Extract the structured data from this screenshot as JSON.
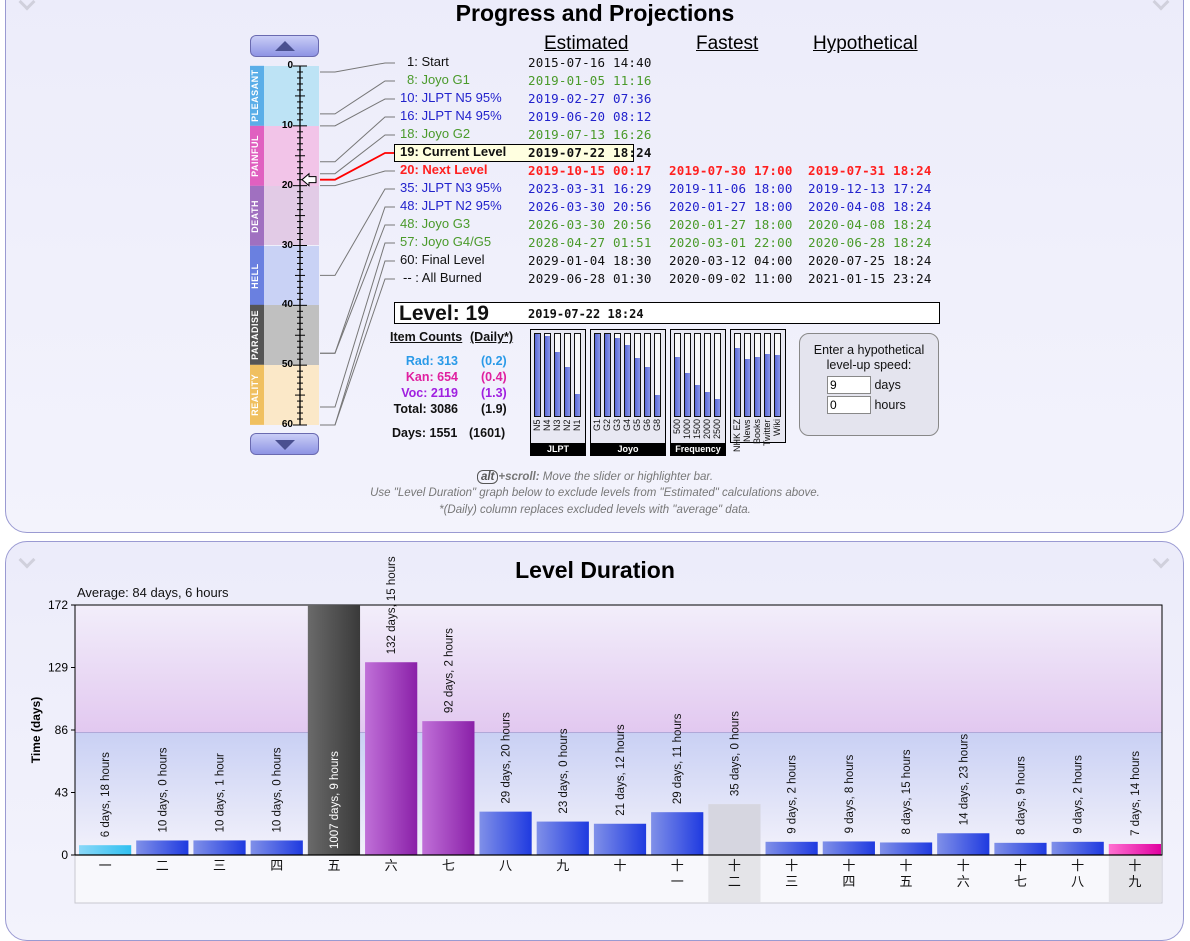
{
  "progress_panel": {
    "title": "Progress and Projections",
    "slider": {
      "scale_ticks": [
        "0",
        "10",
        "20",
        "30",
        "40",
        "50",
        "60"
      ],
      "bands": [
        {
          "label": "PLEASANT",
          "from": 0,
          "to": 10,
          "tag_color": "#5aaee8",
          "bg_color": "#bde3f5"
        },
        {
          "label": "PAINFUL",
          "from": 10,
          "to": 20,
          "tag_color": "#e060c0",
          "bg_color": "#f2c4e8"
        },
        {
          "label": "DEATH",
          "from": 20,
          "to": 30,
          "tag_color": "#a070c0",
          "bg_color": "#e2cbe6"
        },
        {
          "label": "HELL",
          "from": 30,
          "to": 40,
          "tag_color": "#6a80e0",
          "bg_color": "#c9d2f5"
        },
        {
          "label": "PARADISE",
          "from": 40,
          "to": 50,
          "tag_color": "#555555",
          "bg_color": "#c0c0c0"
        },
        {
          "label": "REALITY",
          "from": 50,
          "to": 60,
          "tag_color": "#f0c060",
          "bg_color": "#fbe8c8"
        }
      ],
      "current_level": 19
    },
    "columns": {
      "estimated": "Estimated",
      "fastest": "Fastest",
      "hypothetical": "Hypothetical"
    },
    "milestones": [
      {
        "level": 1,
        "label": "1: Start",
        "color": "black",
        "estimated": "2015-07-16 14:40",
        "fastest": "",
        "hypothetical": ""
      },
      {
        "level": 8,
        "label": "8: Joyo G1",
        "color": "green",
        "estimated": "2019-01-05 11:16",
        "fastest": "",
        "hypothetical": ""
      },
      {
        "level": 10,
        "label": "10: JLPT N5 95%",
        "color": "blue",
        "estimated": "2019-02-27 07:36",
        "fastest": "",
        "hypothetical": ""
      },
      {
        "level": 16,
        "label": "16: JLPT N4 95%",
        "color": "blue",
        "estimated": "2019-06-20 08:12",
        "fastest": "",
        "hypothetical": ""
      },
      {
        "level": 18,
        "label": "18: Joyo G2",
        "color": "green",
        "estimated": "2019-07-13 16:26",
        "fastest": "",
        "hypothetical": ""
      },
      {
        "level": 19,
        "label": "19: Current Level",
        "color": "current",
        "estimated": "2019-07-22 18:24",
        "fastest": "",
        "hypothetical": ""
      },
      {
        "level": 20,
        "label": "20: Next Level",
        "color": "red",
        "estimated": "2019-10-15 00:17",
        "fastest": "2019-07-30 17:00",
        "hypothetical": "2019-07-31 18:24"
      },
      {
        "level": 35,
        "label": "35: JLPT N3 95%",
        "color": "blue",
        "estimated": "2023-03-31 16:29",
        "fastest": "2019-11-06 18:00",
        "hypothetical": "2019-12-13 17:24"
      },
      {
        "level": 48,
        "label": "48: JLPT N2 95%",
        "color": "blue",
        "estimated": "2026-03-30 20:56",
        "fastest": "2020-01-27 18:00",
        "hypothetical": "2020-04-08 18:24"
      },
      {
        "level": 48,
        "label": "48: Joyo G3",
        "color": "green",
        "estimated": "2026-03-30 20:56",
        "fastest": "2020-01-27 18:00",
        "hypothetical": "2020-04-08 18:24"
      },
      {
        "level": 57,
        "label": "57: Joyo G4/G5",
        "color": "green",
        "estimated": "2028-04-27 01:51",
        "fastest": "2020-03-01 22:00",
        "hypothetical": "2020-06-28 18:24"
      },
      {
        "level": 60,
        "label": "60: Final Level",
        "color": "black",
        "estimated": "2029-01-04 18:30",
        "fastest": "2020-03-12 04:00",
        "hypothetical": "2020-07-25 18:24"
      },
      {
        "level": 60,
        "label": "-- : All Burned",
        "color": "black",
        "estimated": "2029-06-28 01:30",
        "fastest": "2020-09-02 11:00",
        "hypothetical": "2021-01-15 23:24"
      }
    ],
    "level_box": {
      "label": "Level: 19",
      "date": "2019-07-22 18:24"
    },
    "item_counts": {
      "header": "Item Counts",
      "daily_header": "(Daily*)",
      "rows": [
        {
          "label": "Rad: 313",
          "daily": "(0.2)",
          "color": "#2a9ae8"
        },
        {
          "label": "Kan: 654",
          "daily": "(0.4)",
          "color": "#e020a0"
        },
        {
          "label": "Voc: 2119",
          "daily": "(1.3)",
          "color": "#a020e0"
        },
        {
          "label": "Total: 3086",
          "daily": "(1.9)",
          "color": "#111111"
        }
      ],
      "days": {
        "label": "Days: 1551",
        "daily": "(1601)"
      }
    },
    "mini_charts": [
      {
        "caption": "JLPT",
        "bars": [
          {
            "label": "N5",
            "fraction": 1.0
          },
          {
            "label": "N4",
            "fraction": 0.98
          },
          {
            "label": "N3",
            "fraction": 0.78
          },
          {
            "label": "N2",
            "fraction": 0.6
          },
          {
            "label": "N1",
            "fraction": 0.27
          }
        ]
      },
      {
        "caption": "Joyo",
        "bars": [
          {
            "label": "G1",
            "fraction": 1.0
          },
          {
            "label": "G2",
            "fraction": 1.0
          },
          {
            "label": "G3",
            "fraction": 0.95
          },
          {
            "label": "G4",
            "fraction": 0.87
          },
          {
            "label": "G5",
            "fraction": 0.71
          },
          {
            "label": "G6",
            "fraction": 0.6
          },
          {
            "label": "G8",
            "fraction": 0.26
          }
        ]
      },
      {
        "caption": "Frequency",
        "bars": [
          {
            "label": "500",
            "fraction": 0.72
          },
          {
            "label": "1000",
            "fraction": 0.52
          },
          {
            "label": "1500",
            "fraction": 0.38
          },
          {
            "label": "2000",
            "fraction": 0.29
          },
          {
            "label": "2500",
            "fraction": 0.21
          }
        ]
      },
      {
        "caption": "",
        "bars": [
          {
            "label": "NHK EZ",
            "fraction": 0.83
          },
          {
            "label": "News",
            "fraction": 0.7
          },
          {
            "label": "Books",
            "fraction": 0.72
          },
          {
            "label": "Twitter",
            "fraction": 0.76
          },
          {
            "label": "Wiki",
            "fraction": 0.74
          }
        ]
      }
    ],
    "hypothetical_input": {
      "prompt": "Enter a hypothetical level-up speed:",
      "days_value": "9",
      "days_label": "days",
      "hours_value": "0",
      "hours_label": "hours"
    },
    "help": {
      "key": "alt",
      "line1_bold": "+scroll:",
      "line1_rest": " Move the slider or highlighter bar.",
      "line2": "Use \"Level Duration\" graph below to exclude levels from \"Estimated\" calculations above.",
      "line3": "*(Daily) column replaces excluded levels with \"average\" data."
    }
  },
  "duration_panel": {
    "title": "Level Duration"
  },
  "chart_data": {
    "type": "bar",
    "title": "Level Duration",
    "subtitle": "Average: 84 days, 6 hours",
    "ylabel": "Time (days)",
    "xlabel": "",
    "ylim": [
      0,
      172
    ],
    "yticks": [
      0,
      43,
      86,
      129,
      172
    ],
    "average_line": 84.25,
    "categories": [
      "一",
      "二",
      "三",
      "四",
      "五",
      "六",
      "七",
      "八",
      "九",
      "十",
      "十一",
      "十二",
      "十三",
      "十四",
      "十五",
      "十六",
      "十七",
      "十八",
      "十九"
    ],
    "values": [
      6.75,
      10.0,
      10.04,
      10.0,
      1007.375,
      132.625,
      92.083,
      29.833,
      23.0,
      21.5,
      29.458,
      35.0,
      9.083,
      9.333,
      8.625,
      14.958,
      8.375,
      9.083,
      7.583
    ],
    "labels": [
      "6 days, 18 hours",
      "10 days, 0 hours",
      "10 days, 1 hour",
      "10 days, 0 hours",
      "1007 days, 9 hours",
      "132 days, 15 hours",
      "92 days, 2 hours",
      "29 days, 20 hours",
      "23 days, 0 hours",
      "21 days, 12 hours",
      "29 days, 11 hours",
      "35 days, 0 hours",
      "9 days, 2 hours",
      "9 days, 8 hours",
      "8 days, 15 hours",
      "14 days, 23 hours",
      "8 days, 9 hours",
      "9 days, 2 hours",
      "7 days, 14 hours"
    ],
    "bar_styles": [
      "cyan",
      "blue",
      "blue",
      "blue",
      "gray",
      "purple",
      "purple",
      "blue",
      "blue",
      "blue",
      "blue",
      "excluded",
      "blue",
      "blue",
      "blue",
      "blue",
      "blue",
      "blue",
      "pink"
    ],
    "highlighted": [
      12,
      19
    ],
    "grid": false
  }
}
